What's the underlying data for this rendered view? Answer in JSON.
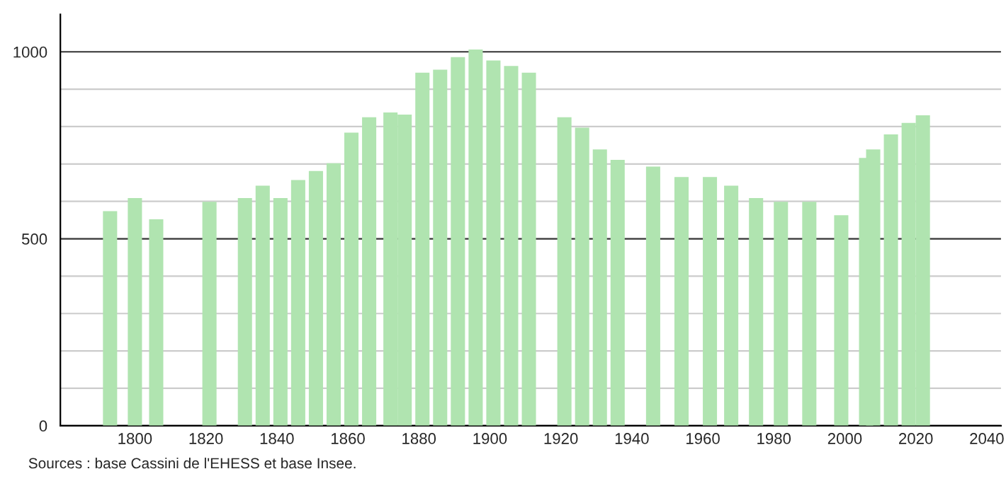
{
  "chart_data": {
    "type": "bar",
    "x": [
      1793,
      1800,
      1806,
      1821,
      1831,
      1836,
      1841,
      1846,
      1851,
      1856,
      1861,
      1866,
      1872,
      1876,
      1881,
      1886,
      1891,
      1896,
      1901,
      1906,
      1911,
      1921,
      1926,
      1931,
      1936,
      1946,
      1954,
      1962,
      1968,
      1975,
      1982,
      1990,
      1999,
      2006,
      2008,
      2013,
      2018,
      2022
    ],
    "values": [
      574,
      609,
      552,
      599,
      609,
      642,
      609,
      657,
      681,
      702,
      784,
      825,
      838,
      832,
      944,
      952,
      986,
      1006,
      977,
      962,
      944,
      825,
      797,
      739,
      711,
      693,
      665,
      665,
      642,
      609,
      599,
      599,
      563,
      716,
      739,
      779,
      810,
      830
    ],
    "color": "#b0e4b0",
    "xlim": [
      1779,
      2044
    ],
    "xticks": [
      1800,
      1820,
      1840,
      1860,
      1880,
      1900,
      1920,
      1940,
      1960,
      1980,
      2000,
      2020,
      2040
    ],
    "ylim": [
      0,
      1100
    ],
    "yticks": [
      0,
      {
        "value": 100,
        "label": null
      },
      {
        "value": 200,
        "label": null
      },
      {
        "value": 300,
        "label": null
      },
      {
        "value": 400,
        "label": null
      },
      500,
      {
        "value": 600,
        "label": null
      },
      {
        "value": 700,
        "label": null
      },
      {
        "value": 800,
        "label": null
      },
      {
        "value": 900,
        "label": null
      },
      1000
    ],
    "grid": "y",
    "annotations": [
      "Sources : base Cassini de l'EHESS et base Insee."
    ]
  }
}
